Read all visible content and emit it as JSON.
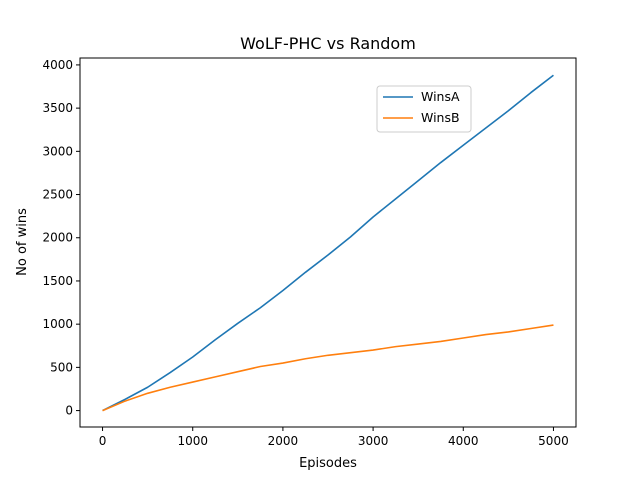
{
  "chart_data": {
    "type": "line",
    "title": "WoLF-PHC vs Random",
    "xlabel": "Episodes",
    "ylabel": "No of wins",
    "xlim": [
      -250,
      5250
    ],
    "ylim": [
      -190,
      4080
    ],
    "xticks": [
      0,
      1000,
      2000,
      3000,
      4000,
      5000
    ],
    "yticks": [
      0,
      500,
      1000,
      1500,
      2000,
      2500,
      3000,
      3500,
      4000
    ],
    "grid": false,
    "legend_position": "upper right",
    "series": [
      {
        "name": "WinsA",
        "color": "#1f77b4",
        "x": [
          0,
          250,
          500,
          750,
          1000,
          1250,
          1500,
          1750,
          2000,
          2250,
          2500,
          2750,
          3000,
          3250,
          3500,
          3750,
          4000,
          4250,
          4500,
          4750,
          5000
        ],
        "y": [
          0,
          130,
          270,
          440,
          620,
          820,
          1010,
          1190,
          1390,
          1600,
          1800,
          2010,
          2240,
          2450,
          2660,
          2870,
          3070,
          3270,
          3470,
          3680,
          3880
        ]
      },
      {
        "name": "WinsB",
        "color": "#ff7f0e",
        "x": [
          0,
          250,
          500,
          750,
          1000,
          1250,
          1500,
          1750,
          2000,
          2250,
          2500,
          2750,
          3000,
          3250,
          3500,
          3750,
          4000,
          4250,
          4500,
          4750,
          5000
        ],
        "y": [
          0,
          110,
          200,
          270,
          330,
          390,
          450,
          510,
          550,
          600,
          640,
          670,
          700,
          740,
          770,
          800,
          840,
          880,
          910,
          950,
          990
        ]
      }
    ]
  }
}
